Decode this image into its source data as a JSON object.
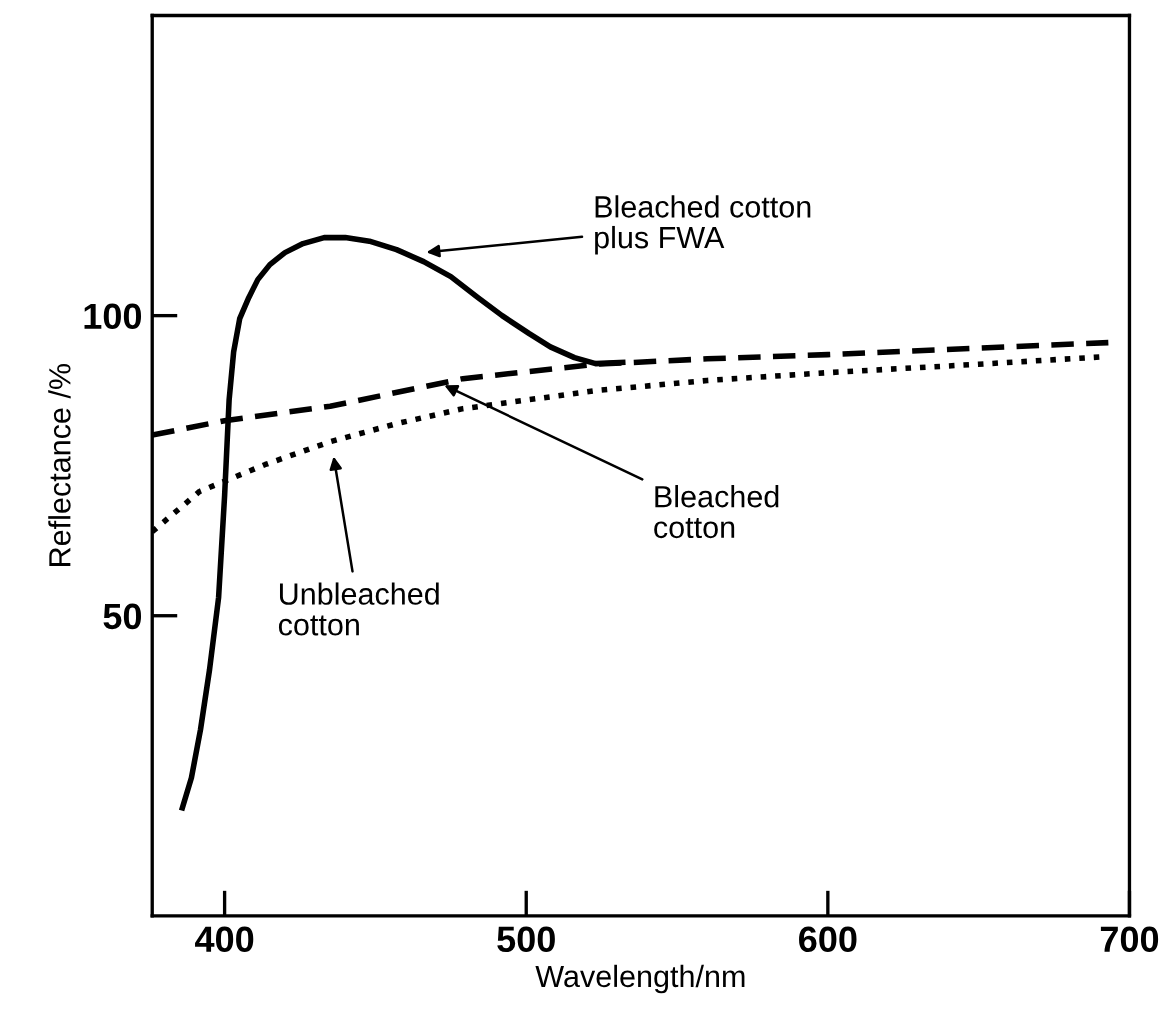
{
  "chart_data": {
    "type": "line",
    "xlabel": "Wavelength/nm",
    "ylabel": "Reflectance /%",
    "xlim": [
      376,
      700
    ],
    "xticks": [
      400,
      500,
      600,
      700
    ],
    "ylim": [
      0,
      150
    ],
    "yticks": [
      50,
      100
    ],
    "grid": false,
    "legend": false,
    "marker": "none",
    "series": [
      {
        "color": "#000000",
        "line_style": "solid",
        "x": [
          386,
          389,
          392,
          395,
          398,
          400,
          401.5,
          403,
          405,
          408,
          411,
          415,
          420,
          426,
          433,
          440,
          448,
          457,
          466,
          475,
          484,
          492,
          501,
          508,
          516,
          523,
          532
        ],
        "values": [
          18,
          23,
          31,
          41,
          53,
          70,
          86,
          94,
          99.5,
          103,
          106,
          108.5,
          110.5,
          112,
          113,
          113,
          112.4,
          111,
          109,
          106.5,
          103,
          100,
          97,
          94.8,
          93,
          92,
          92.2
        ]
      },
      {
        "color": "#000000",
        "line_style": "dashed",
        "x": [
          376,
          400,
          435,
          479,
          523,
          560,
          600,
          650,
          693
        ],
        "values": [
          80.1,
          82.5,
          84.9,
          89.5,
          91.9,
          92.8,
          93.5,
          94.6,
          95.5
        ]
      },
      {
        "color": "#000000",
        "line_style": "dotted",
        "x": [
          376,
          391.7,
          413.5,
          435,
          457,
          479,
          523,
          560,
          600,
          650,
          690
        ],
        "values": [
          64,
          70.7,
          75.2,
          79,
          82,
          84.5,
          87.5,
          89.2,
          90.5,
          91.9,
          93.1
        ]
      }
    ],
    "annotations": [
      {
        "text": "Bleached cotton\nplus FWA",
        "x": 466,
        "y": 110.5
      },
      {
        "text": "Bleached\ncotton",
        "x": 472,
        "y": 88.6
      },
      {
        "text": "Unbleached\ncotton",
        "x": 436,
        "y": 77
      }
    ]
  }
}
